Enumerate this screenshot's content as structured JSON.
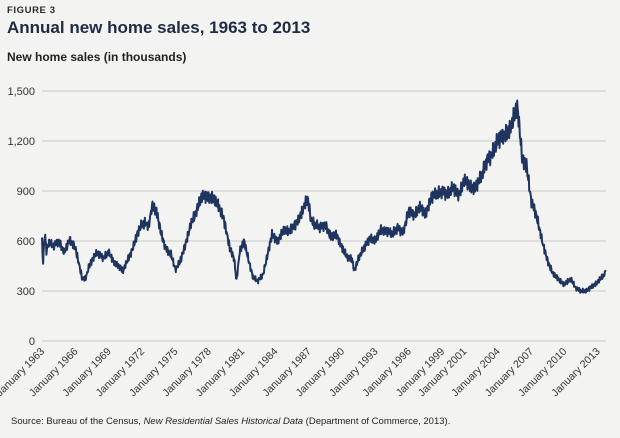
{
  "figure_label": "FIGURE 3",
  "source": {
    "prefix": "Source: Bureau of the Census, ",
    "title": "New Residential Sales Historical Data",
    "suffix": " (Department of Commerce, 2013)."
  },
  "colors": {
    "line": "#1f3560",
    "grid": "#c9c9c9",
    "background": "#f3f3f1"
  },
  "chart_data": {
    "type": "line",
    "title": "Annual new home sales, 1963 to 2013",
    "xlabel": "",
    "ylabel": "New home sales (in thousands)",
    "ylim": [
      0,
      1500
    ],
    "yticks": [
      0,
      300,
      600,
      900,
      1200,
      1500
    ],
    "ytick_labels": [
      "0",
      "300",
      "600",
      "900",
      "1,200",
      "1,500"
    ],
    "xlim": [
      1963.0,
      2013.75
    ],
    "xticks": [
      1963,
      1966,
      1969,
      1972,
      1975,
      1978,
      1981,
      1984,
      1987,
      1990,
      1993,
      1996,
      1999,
      2001,
      2004,
      2007,
      2010,
      2013
    ],
    "xtick_labels": [
      "January 1963",
      "January 1966",
      "January 1969",
      "January 1972",
      "January 1975",
      "January 1978",
      "January 1981",
      "January 1984",
      "January 1987",
      "January 1990",
      "January 1993",
      "January 1996",
      "January 1999",
      "January 2001",
      "January 2004",
      "January 2007",
      "January 2010",
      "January 2013"
    ],
    "grid": true,
    "series": [
      {
        "name": "New home sales",
        "x": [
          1963.0,
          1963.1,
          1963.25,
          1963.4,
          1963.6,
          1964.0,
          1964.5,
          1965.0,
          1965.5,
          1966.0,
          1966.3,
          1966.6,
          1966.9,
          1967.2,
          1967.6,
          1968.0,
          1968.5,
          1969.0,
          1969.5,
          1969.9,
          1970.3,
          1970.8,
          1971.2,
          1971.6,
          1972.0,
          1972.3,
          1972.6,
          1972.9,
          1973.3,
          1973.7,
          1974.1,
          1974.6,
          1975.0,
          1975.4,
          1975.9,
          1976.4,
          1976.9,
          1977.3,
          1977.8,
          1978.3,
          1978.8,
          1979.3,
          1979.9,
          1980.3,
          1980.5,
          1980.8,
          1981.2,
          1981.6,
          1982.0,
          1982.4,
          1982.9,
          1983.3,
          1983.7,
          1984.2,
          1984.7,
          1985.2,
          1985.8,
          1986.3,
          1986.9,
          1987.2,
          1987.5,
          1988.0,
          1988.5,
          1989.0,
          1989.5,
          1990.0,
          1990.4,
          1990.9,
          1991.1,
          1991.5,
          1992.0,
          1992.5,
          1993.0,
          1993.5,
          1994.0,
          1994.5,
          1995.0,
          1995.5,
          1996.0,
          1996.5,
          1997.0,
          1997.5,
          1998.0,
          1998.5,
          1999.0,
          1999.5,
          2000.0,
          2000.5,
          2001.0,
          2001.5,
          2002.0,
          2002.5,
          2003.0,
          2003.5,
          2004.0,
          2004.5,
          2005.0,
          2005.3,
          2005.6,
          2005.8,
          2006.2,
          2006.6,
          2007.0,
          2007.5,
          2008.0,
          2008.5,
          2009.0,
          2009.5,
          2010.0,
          2010.3,
          2010.6,
          2011.0,
          2011.5,
          2012.0,
          2012.5,
          2013.0,
          2013.3,
          2013.5,
          2013.6,
          2013.7
        ],
        "values": [
          600,
          470,
          650,
          540,
          590,
          570,
          600,
          530,
          610,
          560,
          470,
          380,
          370,
          440,
          500,
          530,
          500,
          530,
          470,
          450,
          420,
          500,
          560,
          650,
          700,
          710,
          690,
          810,
          780,
          650,
          560,
          520,
          430,
          470,
          580,
          700,
          780,
          860,
          870,
          860,
          820,
          750,
          560,
          490,
          360,
          540,
          600,
          480,
          380,
          360,
          400,
          520,
          640,
          600,
          660,
          660,
          700,
          760,
          860,
          730,
          700,
          680,
          700,
          620,
          640,
          560,
          510,
          490,
          420,
          500,
          560,
          620,
          600,
          670,
          660,
          640,
          680,
          650,
          780,
          760,
          800,
          760,
          860,
          880,
          900,
          880,
          920,
          880,
          960,
          930,
          920,
          980,
          1080,
          1120,
          1200,
          1240,
          1250,
          1300,
          1380,
          1400,
          1100,
          1050,
          850,
          750,
          600,
          480,
          400,
          370,
          340,
          360,
          370,
          320,
          300,
          300,
          330,
          350,
          380,
          390,
          400,
          420
        ]
      }
    ]
  }
}
